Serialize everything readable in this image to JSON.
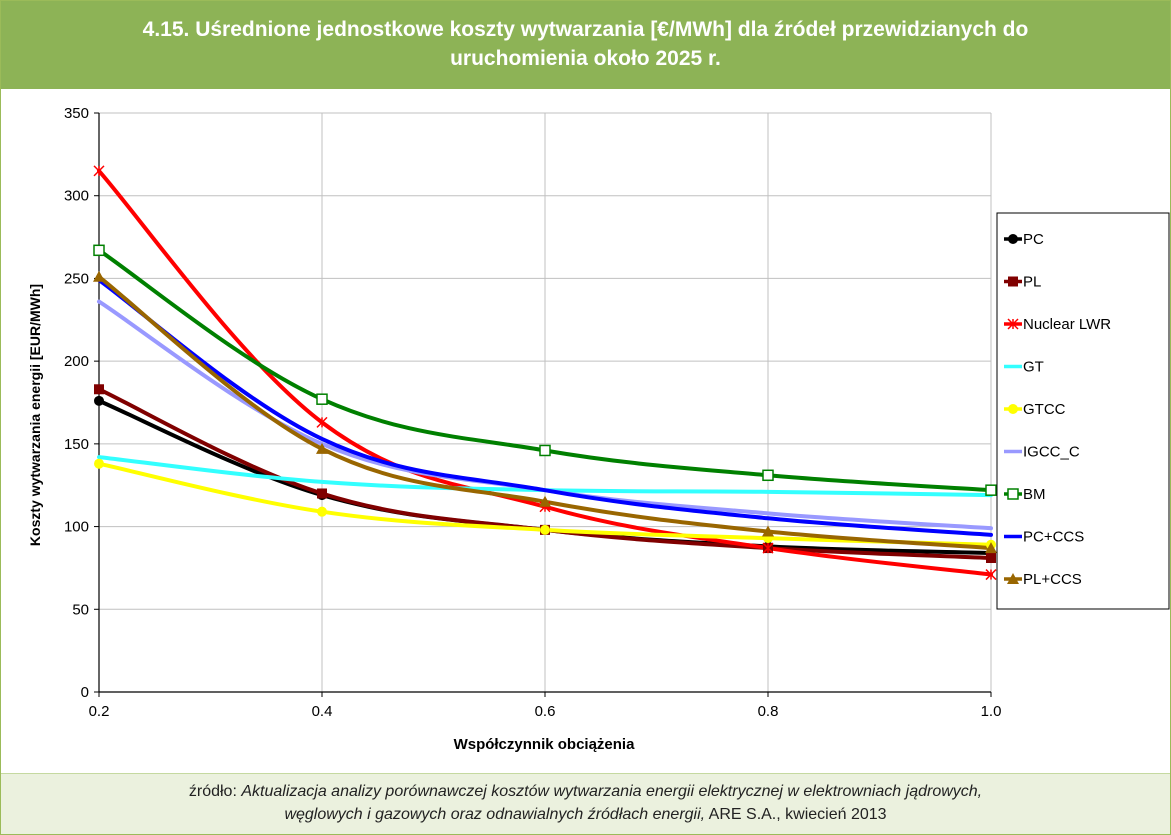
{
  "header": {
    "title_line1": "4.15. Uśrednione jednostkowe koszty wytwarzania [€/MWh] dla źródeł przewidzianych do",
    "title_line2": "uruchomienia około 2025 r."
  },
  "footer": {
    "prefix": "źródło: ",
    "source_italic_1": "Aktualizacja analizy porównawczej kosztów wytwarzania energii elektrycznej w elektrowniach jądrowych,",
    "source_italic_2": "węglowych i gazowych  oraz odnawialnych źródłach energii,",
    "suffix": " ARE S.A., kwiecień 2013"
  },
  "chart_data": {
    "type": "line",
    "title": "",
    "xlabel": "Współczynnik obciążenia",
    "ylabel": "Koszty wytwarzania energii [EUR/MWh]",
    "x": [
      0.2,
      0.4,
      0.6,
      0.8,
      1.0
    ],
    "x_ticks": [
      "0.2",
      "0.4",
      "0.6",
      "0.8",
      "1.0"
    ],
    "xlim": [
      0.2,
      1.0
    ],
    "ylim": [
      0,
      350
    ],
    "y_ticks": [
      0,
      50,
      100,
      150,
      200,
      250,
      300,
      350
    ],
    "grid": true,
    "legend_position": "right",
    "series": [
      {
        "name": "PC",
        "color": "#000000",
        "marker": "circle",
        "values": [
          176,
          119,
          98,
          88,
          84
        ]
      },
      {
        "name": "PL",
        "color": "#800000",
        "marker": "square",
        "values": [
          183,
          120,
          98,
          87,
          81
        ]
      },
      {
        "name": "Nuclear LWR",
        "color": "#ff0000",
        "marker": "star",
        "values": [
          315,
          163,
          112,
          87,
          71
        ]
      },
      {
        "name": "GT",
        "color": "#33ffff",
        "marker": "none",
        "values": [
          142,
          127,
          122,
          121,
          119
        ]
      },
      {
        "name": "GTCC",
        "color": "#ffff00",
        "marker": "circle",
        "values": [
          138,
          109,
          98,
          93,
          89
        ]
      },
      {
        "name": "IGCC_C",
        "color": "#9999ff",
        "marker": "none",
        "values": [
          236,
          150,
          122,
          108,
          99
        ]
      },
      {
        "name": "BM",
        "color": "#008000",
        "marker": "open-square",
        "values": [
          267,
          177,
          146,
          131,
          122
        ]
      },
      {
        "name": "PC+CCS",
        "color": "#0000ff",
        "marker": "none",
        "values": [
          249,
          153,
          122,
          105,
          95
        ]
      },
      {
        "name": "PL+CCS",
        "color": "#996600",
        "marker": "triangle",
        "values": [
          251,
          147,
          115,
          97,
          87
        ]
      }
    ]
  }
}
